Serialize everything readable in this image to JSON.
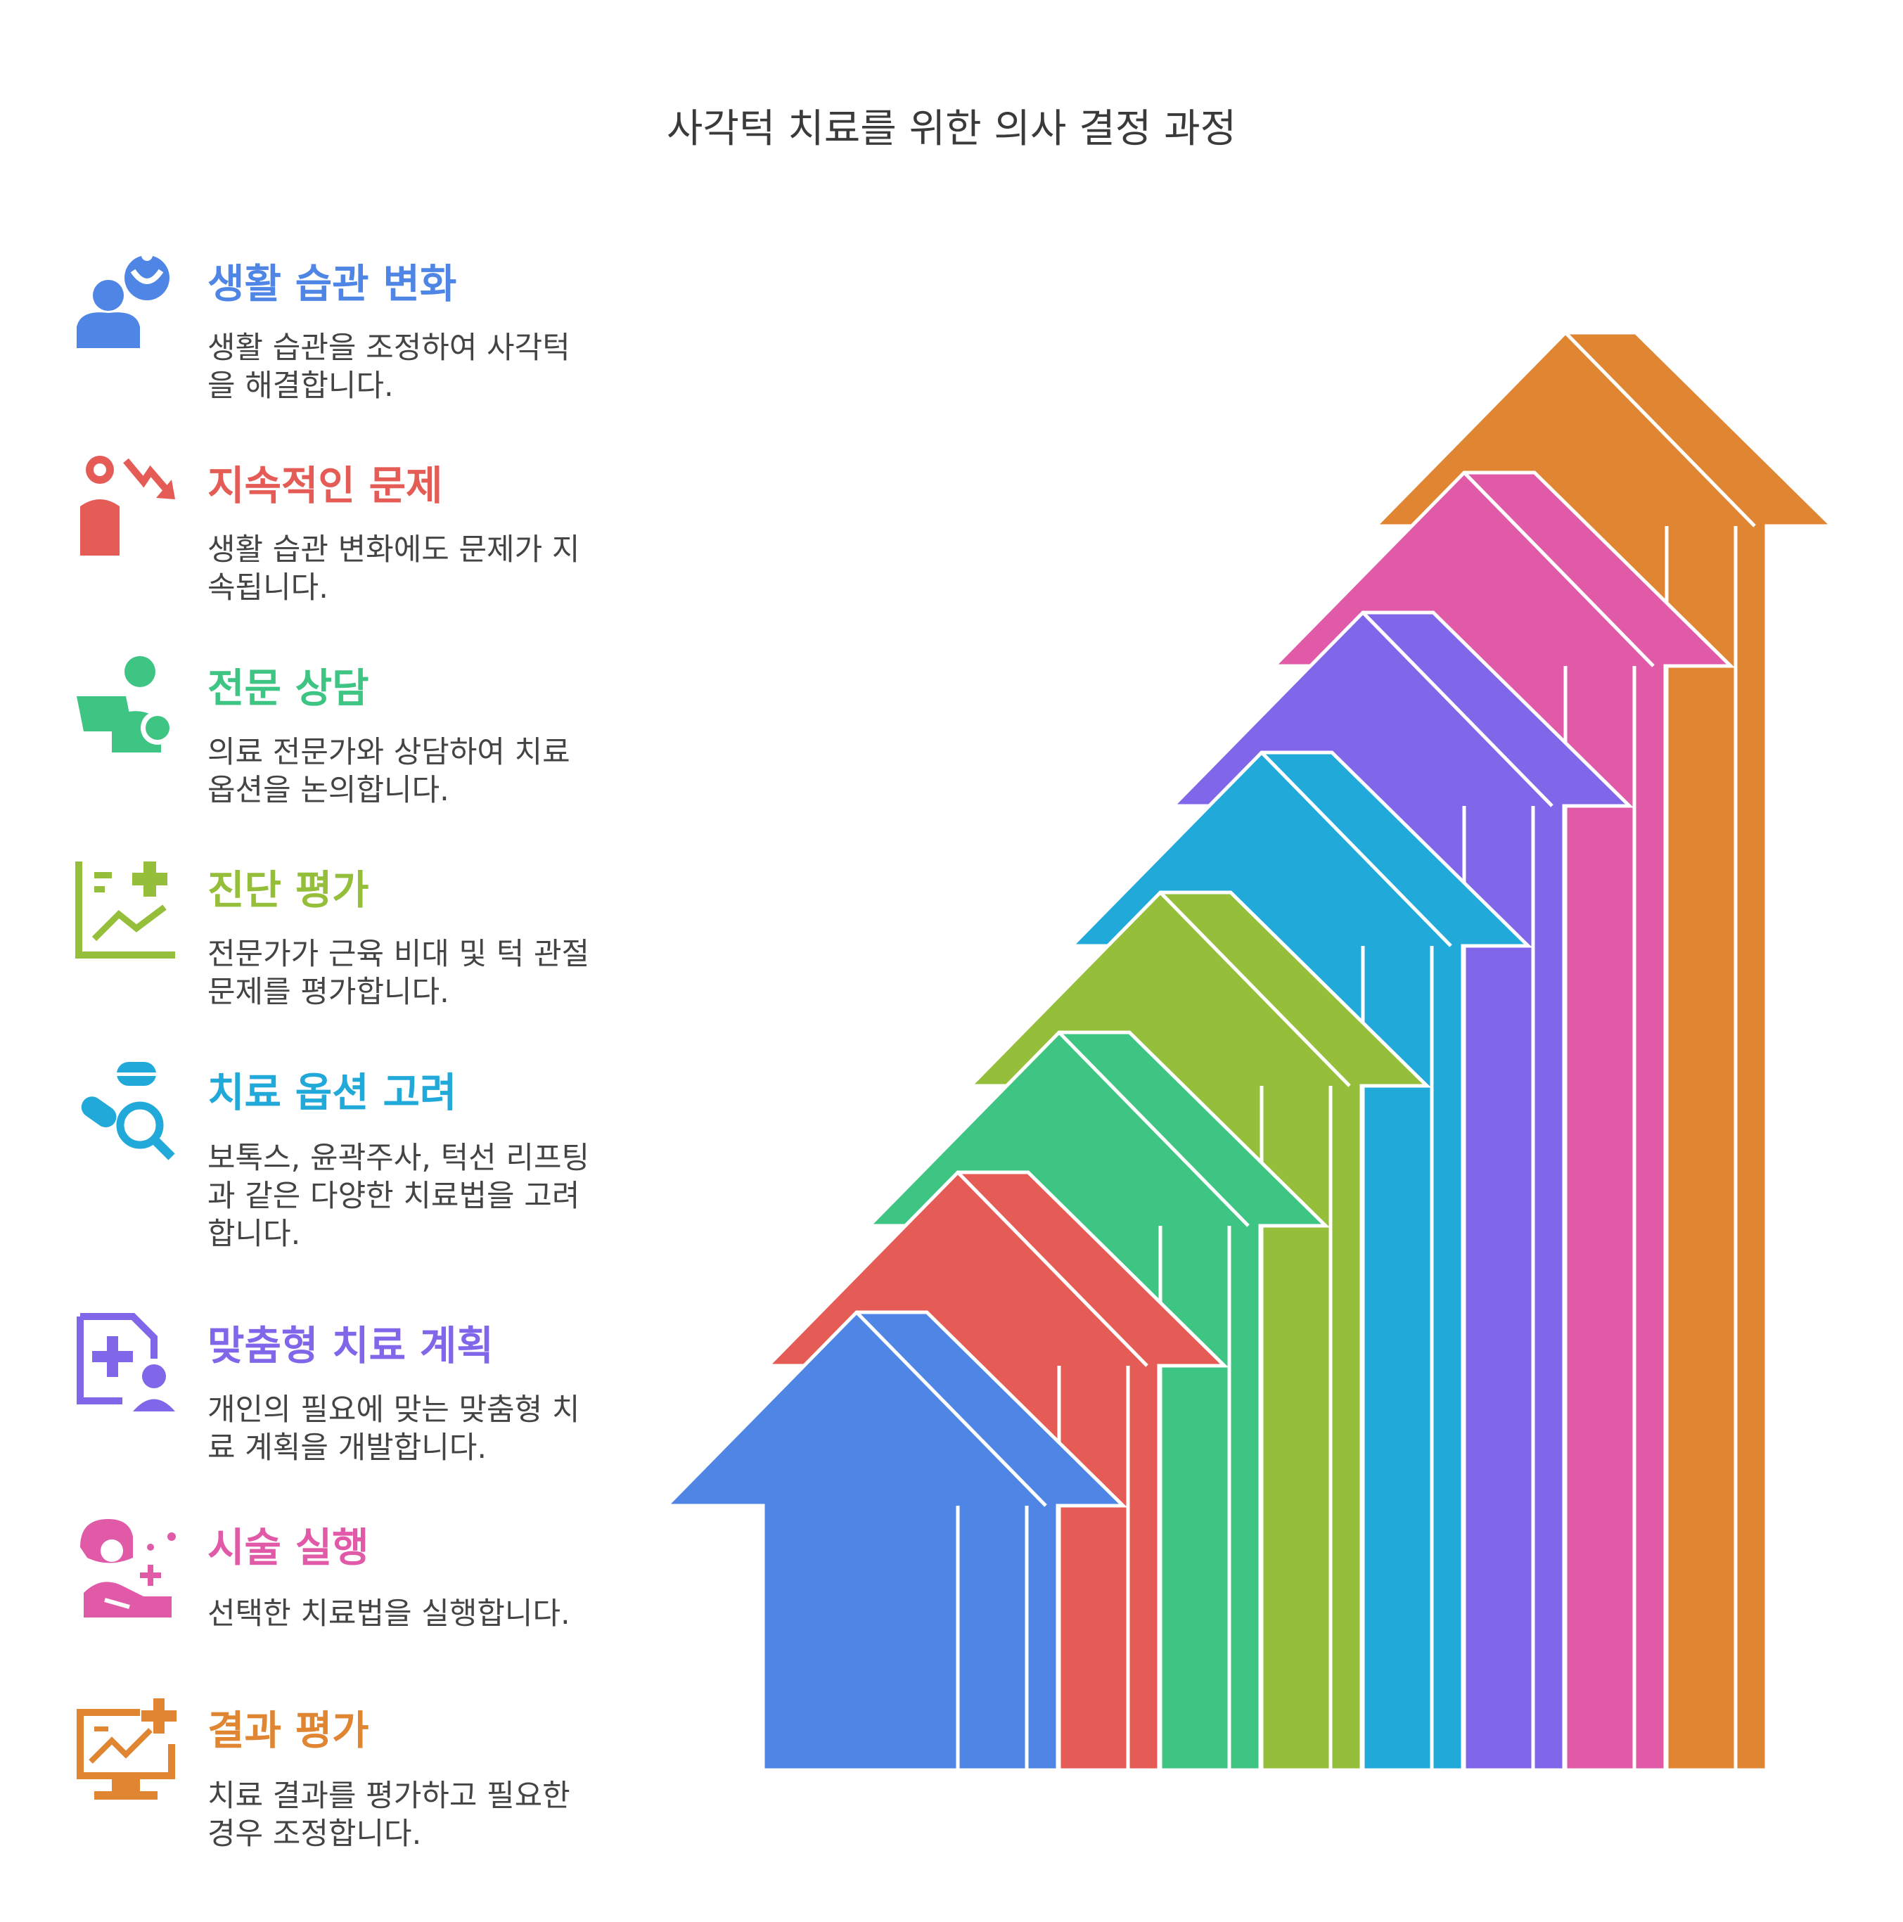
{
  "title": "사각턱 치료를 위한 의사 결정 과정",
  "steps": [
    {
      "title": "생활 습관 변화",
      "desc": "생활 습관을 조정하여 사각턱\n을 해결합니다.",
      "color": "#4F86E6",
      "icon": "person-thinking-icon"
    },
    {
      "title": "지속적인 문제",
      "desc": "생활 습관 변화에도 문제가 지\n속됩니다.",
      "color": "#E55B55",
      "icon": "person-decline-icon"
    },
    {
      "title": "전문 상담",
      "desc": "의료 전문가와 상담하여 치료\n옵션을 논의합니다.",
      "color": "#3EC483",
      "icon": "consultation-icon"
    },
    {
      "title": "진단 평가",
      "desc": "전문가가 근육 비대 및 턱 관절\n문제를 평가합니다.",
      "color": "#95BE3A",
      "icon": "diagnostic-chart-icon"
    },
    {
      "title": "치료 옵션 고려",
      "desc": "보톡스, 윤곽주사, 턱선 리프팅\n과 같은 다양한 치료법을 고려\n합니다.",
      "color": "#21A9D9",
      "icon": "pill-search-icon"
    },
    {
      "title": "맞춤형 치료 계획",
      "desc": "개인의 필요에 맞는 맞춤형 치\n료 계획을 개발합니다.",
      "color": "#8066E8",
      "icon": "medical-plan-icon"
    },
    {
      "title": "시술 실행",
      "desc": "선택한 치료법을 실행합니다.",
      "color": "#E05AA8",
      "icon": "procedure-icon"
    },
    {
      "title": "결과 평가",
      "desc": "치료 결과를 평가하고 필요한\n경우 조정합니다.",
      "color": "#E08531",
      "icon": "result-monitor-icon"
    }
  ]
}
